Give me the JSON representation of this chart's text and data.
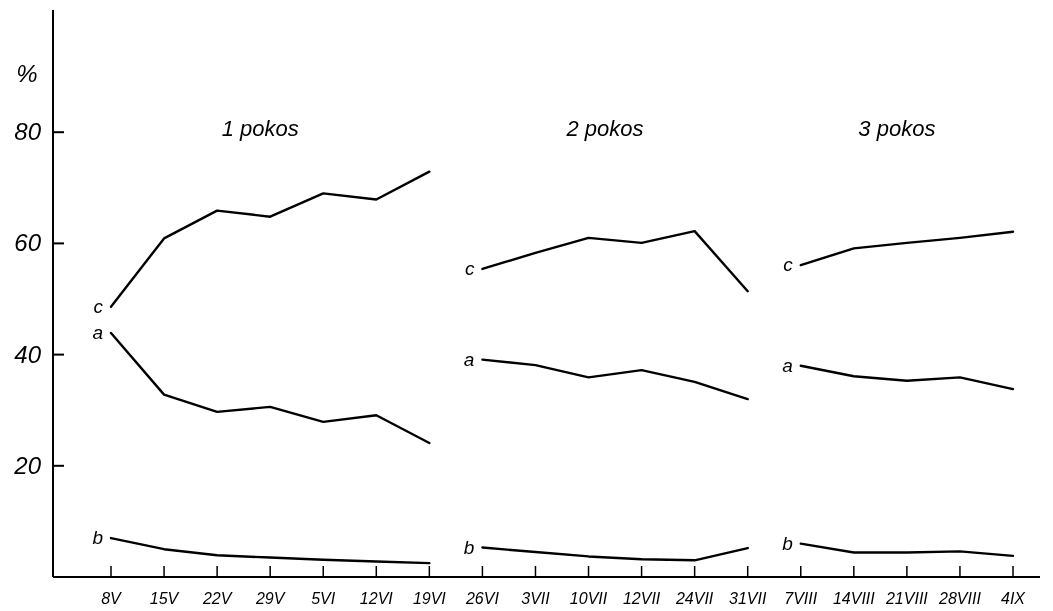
{
  "chart_data": {
    "type": "line",
    "ylabel": "%",
    "categories": [
      "8V",
      "15V",
      "22V",
      "29V",
      "5VI",
      "12VI",
      "19VI",
      "26VI",
      "3VII",
      "10VII",
      "12VII",
      "24VII",
      "31VII",
      "7VIII",
      "14VIII",
      "21VIII",
      "28VIII",
      "4IX"
    ],
    "annotations": [
      "1 pokos",
      "2 pokos",
      "3 pokos"
    ],
    "ylim": [
      0,
      102
    ],
    "yticks": [
      20,
      40,
      60,
      80
    ],
    "marker": "none",
    "line_style": "solid",
    "series": [
      {
        "name": "c",
        "color": "#000000",
        "values": [
          48.6,
          60.9,
          65.9,
          64.8,
          69.0,
          67.9,
          72.9,
          null,
          null,
          null,
          null,
          null,
          null,
          null,
          null,
          null,
          null,
          null
        ]
      },
      {
        "name": "a",
        "color": "#000000",
        "values": [
          43.9,
          32.8,
          29.7,
          30.6,
          27.9,
          29.1,
          24.1,
          null,
          null,
          null,
          null,
          null,
          null,
          null,
          null,
          null,
          null,
          null
        ]
      },
      {
        "name": "b",
        "color": "#000000",
        "values": [
          7.0,
          5.0,
          3.9,
          3.5,
          3.1,
          2.8,
          2.5,
          null,
          null,
          null,
          null,
          null,
          null,
          null,
          null,
          null,
          null,
          null
        ]
      },
      {
        "name": "c",
        "color": "#000000",
        "values": [
          null,
          null,
          null,
          null,
          null,
          null,
          null,
          55.4,
          58.3,
          61.0,
          60.1,
          62.2,
          51.4,
          null,
          null,
          null,
          null,
          null
        ]
      },
      {
        "name": "a",
        "color": "#000000",
        "values": [
          null,
          null,
          null,
          null,
          null,
          null,
          null,
          39.1,
          38.1,
          35.9,
          37.2,
          35.1,
          32.0,
          null,
          null,
          null,
          null,
          null
        ]
      },
      {
        "name": "b",
        "color": "#000000",
        "values": [
          null,
          null,
          null,
          null,
          null,
          null,
          null,
          5.3,
          4.5,
          3.7,
          3.2,
          3.0,
          5.2,
          null,
          null,
          null,
          null,
          null
        ]
      },
      {
        "name": "c",
        "color": "#000000",
        "values": [
          null,
          null,
          null,
          null,
          null,
          null,
          null,
          null,
          null,
          null,
          null,
          null,
          null,
          56.1,
          59.1,
          60.1,
          61.0,
          62.1
        ]
      },
      {
        "name": "a",
        "color": "#000000",
        "values": [
          null,
          null,
          null,
          null,
          null,
          null,
          null,
          null,
          null,
          null,
          null,
          null,
          null,
          38.0,
          36.1,
          35.3,
          35.9,
          33.8
        ]
      },
      {
        "name": "b",
        "color": "#000000",
        "values": [
          null,
          null,
          null,
          null,
          null,
          null,
          null,
          null,
          null,
          null,
          null,
          null,
          null,
          6.0,
          4.4,
          4.4,
          4.6,
          3.8
        ]
      }
    ]
  }
}
